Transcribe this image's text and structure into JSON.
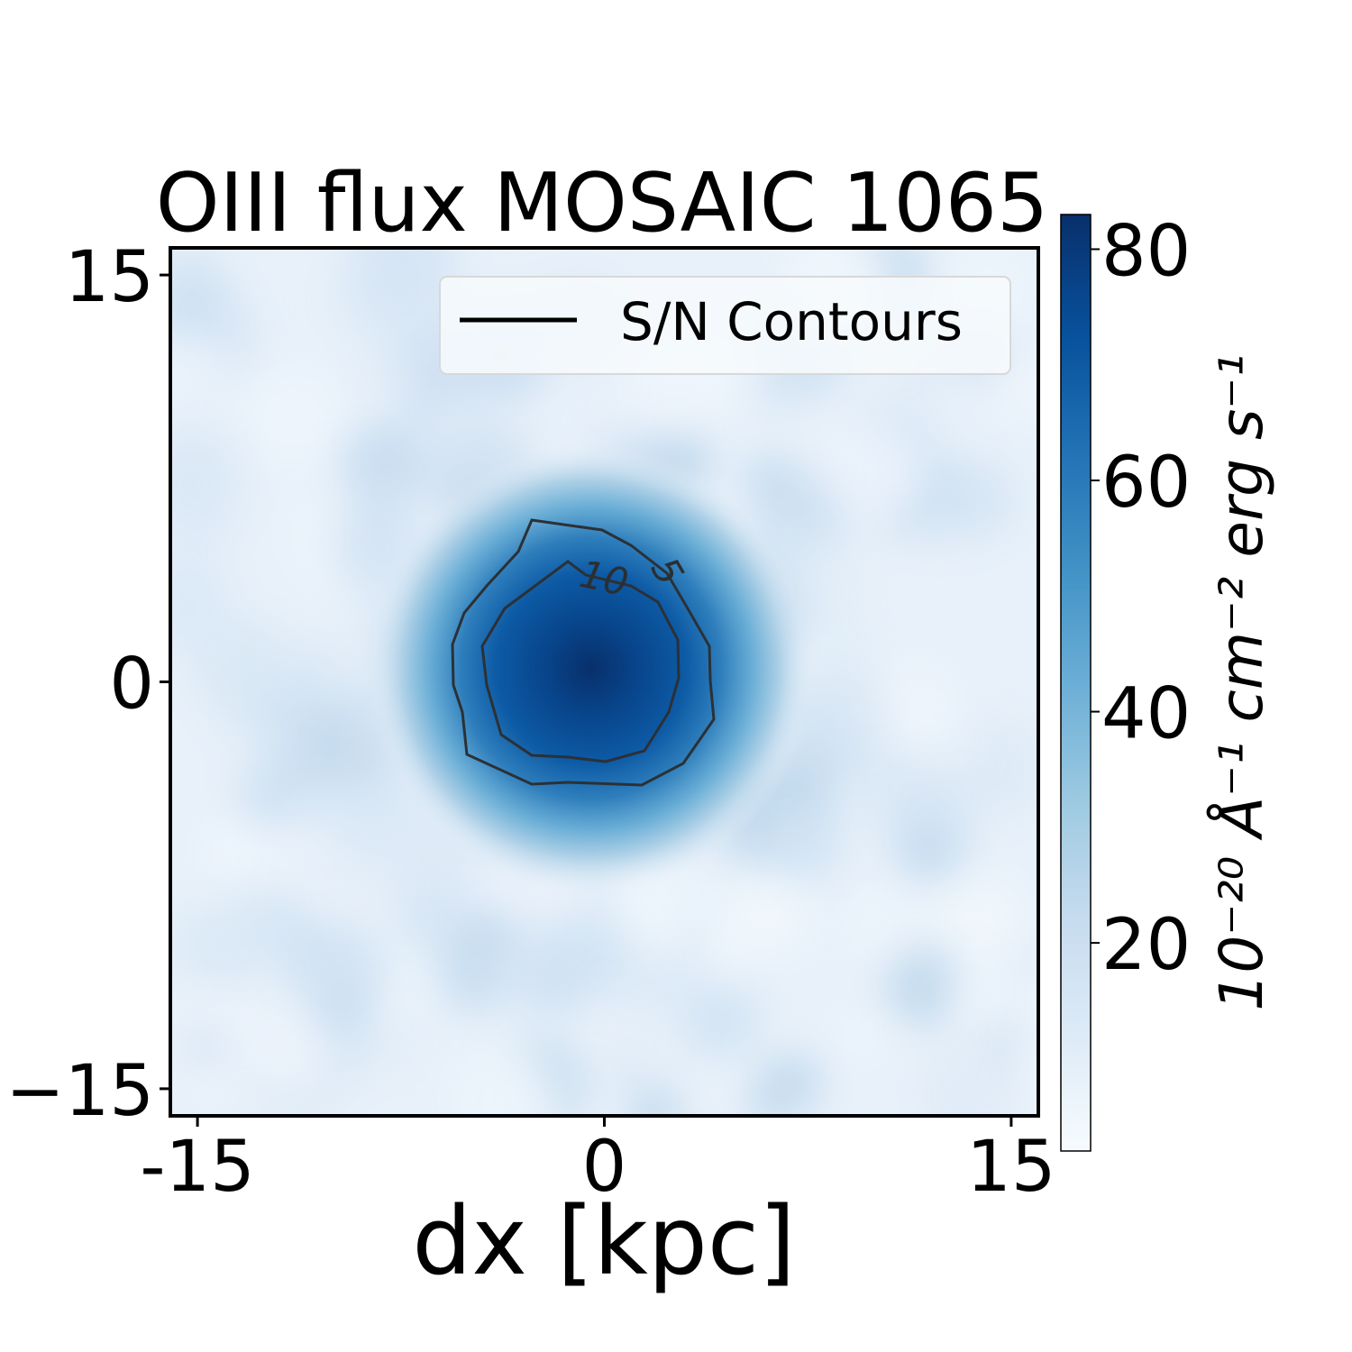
{
  "chart_data": {
    "type": "heatmap",
    "title": "OIII flux MOSAIC 1065",
    "xlabel": "dx [kpc]",
    "ylabel": "",
    "xlim": [
      -16,
      16
    ],
    "ylim": [
      -16,
      16
    ],
    "x_ticks": [
      {
        "value": -15,
        "label": "-15"
      },
      {
        "value": 0,
        "label": "0"
      },
      {
        "value": 15,
        "label": "15"
      }
    ],
    "y_ticks": [
      {
        "value": 15,
        "label": "15"
      },
      {
        "value": 0,
        "label": "0"
      },
      {
        "value": -15,
        "label": "−15"
      }
    ],
    "colormap": "Blues",
    "colorbar": {
      "label": "10⁻²⁰ Å⁻¹ cm⁻² erg s⁻¹",
      "range": [
        2,
        83
      ],
      "ticks": [
        {
          "value": 80,
          "label": "80"
        },
        {
          "value": 60,
          "label": "60"
        },
        {
          "value": 40,
          "label": "40"
        },
        {
          "value": 20,
          "label": "20"
        }
      ]
    },
    "source": {
      "x": -0.5,
      "y": 0.5,
      "peak": 83,
      "sigma_kpc": 2.3
    },
    "background_level": 4,
    "contours": [
      {
        "level": "5",
        "label": "5"
      },
      {
        "level": "10",
        "label": "10"
      }
    ],
    "legend": {
      "label": "S/N Contours",
      "position": "upper right",
      "color": "#000000"
    },
    "colors": {
      "min": "#f7fbff",
      "max": "#08306b"
    }
  }
}
